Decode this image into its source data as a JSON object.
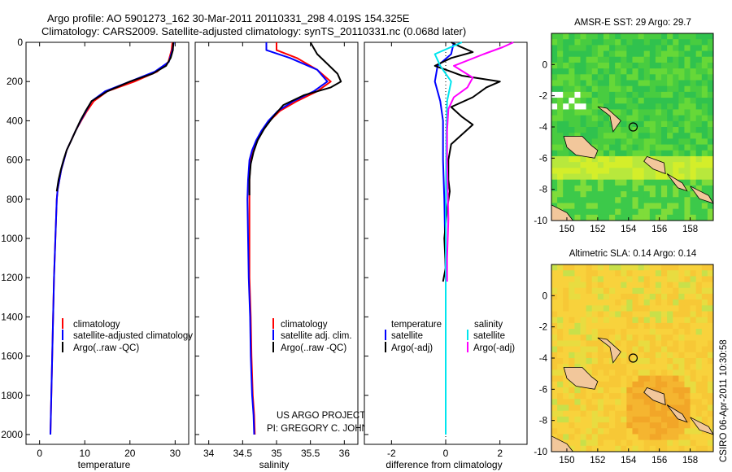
{
  "header": {
    "line1": "Argo profile: AO 5901273_162 30-Mar-2011 20110331_298 4.019S 154.325E",
    "line2": "Climatology: CARS2009. Satellite-adjusted climatology: synTS_20110331.nc (0.068d later)"
  },
  "credits": {
    "project": "US ARGO PROJECT",
    "pi": "PI: GREGORY C. JOHNSON",
    "stamp": "CSIRO 06-Apr-2011 10:30:58"
  },
  "colors": {
    "climatology": "#ff0000",
    "satellite": "#0000ff",
    "argo": "#000000",
    "sal_satellite": "#00e5ee",
    "sal_argo": "#ff00ff",
    "land": "#f2c79b"
  },
  "chart_data": [
    {
      "type": "line",
      "id": "temperature",
      "xlabel": "temperature",
      "ylabel": "",
      "xlim": [
        -3,
        33
      ],
      "ylim": [
        2050,
        0
      ],
      "xticks": [
        0,
        10,
        20,
        30
      ],
      "yticks": [
        0,
        200,
        400,
        600,
        800,
        1000,
        1200,
        1400,
        1600,
        1800,
        2000
      ],
      "legend": [
        "climatology",
        "satellite-adjusted climatology",
        "Argo(..raw -QC)"
      ],
      "series": [
        {
          "name": "climatology",
          "color": "#ff0000",
          "x": [
            29.4,
            29.2,
            28.5,
            26,
            21,
            15,
            12,
            10.5,
            9.2,
            8,
            7,
            6,
            5.4,
            4.8,
            4.4,
            4,
            3.8,
            3.5,
            3.2,
            3,
            2.8,
            2.6,
            2.4
          ],
          "y": [
            0,
            40,
            100,
            150,
            200,
            250,
            300,
            350,
            400,
            450,
            500,
            550,
            600,
            650,
            700,
            750,
            800,
            1000,
            1200,
            1400,
            1600,
            1800,
            2000
          ]
        },
        {
          "name": "satellite-adjusted climatology",
          "color": "#0000ff",
          "x": [
            29.7,
            29.4,
            28.6,
            25.5,
            20,
            14.5,
            11.5,
            10.3,
            9.1,
            8,
            7,
            6,
            5.4,
            4.8,
            4.4,
            4,
            3.8,
            3.5,
            3.2,
            3,
            2.8,
            2.6,
            2.4
          ],
          "y": [
            0,
            40,
            100,
            150,
            200,
            250,
            300,
            350,
            400,
            450,
            500,
            550,
            600,
            650,
            700,
            750,
            800,
            1000,
            1200,
            1400,
            1600,
            1800,
            2000
          ]
        },
        {
          "name": "Argo(..raw -QC)",
          "color": "#000000",
          "x": [
            29.6,
            29.5,
            29,
            28,
            25,
            20,
            15,
            11.5,
            10.2,
            9,
            8,
            7,
            6,
            5.3,
            4.7,
            4.2,
            3.8
          ],
          "y": [
            0,
            40,
            80,
            120,
            160,
            200,
            250,
            300,
            350,
            400,
            450,
            500,
            550,
            600,
            650,
            700,
            760
          ]
        }
      ]
    },
    {
      "type": "line",
      "id": "salinity",
      "xlabel": "salinity",
      "ylabel": "",
      "xlim": [
        33.8,
        36.2
      ],
      "ylim": [
        2050,
        0
      ],
      "xticks": [
        34,
        34.5,
        35,
        35.5,
        36
      ],
      "yticks": [],
      "legend": [
        "climatology",
        "satellite adj. clim.",
        "Argo(..raw -QC)"
      ],
      "series": [
        {
          "name": "climatology",
          "color": "#ff0000",
          "x": [
            35.0,
            35.0,
            35.3,
            35.6,
            35.8,
            35.6,
            35.3,
            35.05,
            34.9,
            34.8,
            34.72,
            34.66,
            34.62,
            34.6,
            34.6,
            34.6,
            34.6,
            34.62,
            34.63,
            34.65,
            34.67,
            34.68
          ],
          "y": [
            0,
            40,
            80,
            140,
            200,
            250,
            300,
            350,
            400,
            450,
            500,
            550,
            600,
            700,
            800,
            1000,
            1200,
            1400,
            1600,
            1800,
            1900,
            2000
          ]
        },
        {
          "name": "satellite adj. clim.",
          "color": "#0000ff",
          "x": [
            34.85,
            34.85,
            35.2,
            35.6,
            35.75,
            35.55,
            35.25,
            35.02,
            34.88,
            34.78,
            34.7,
            34.64,
            34.6,
            34.58,
            34.57,
            34.58,
            34.59,
            34.61,
            34.62,
            34.64,
            34.66,
            34.67
          ],
          "y": [
            0,
            40,
            80,
            140,
            200,
            250,
            300,
            350,
            400,
            450,
            500,
            550,
            600,
            700,
            800,
            1000,
            1200,
            1400,
            1600,
            1800,
            1900,
            2000
          ]
        },
        {
          "name": "Argo(..raw -QC)",
          "color": "#000000",
          "x": [
            35.5,
            35.55,
            35.6,
            35.75,
            35.9,
            35.95,
            35.8,
            35.4,
            35.1,
            34.95,
            34.82,
            34.72,
            34.66,
            34.62,
            34.6,
            34.6
          ],
          "y": [
            0,
            30,
            60,
            110,
            160,
            200,
            230,
            270,
            320,
            380,
            440,
            500,
            560,
            620,
            700,
            780
          ]
        }
      ]
    },
    {
      "type": "line",
      "id": "difference",
      "xlabel": "difference from climatology",
      "ylabel": "",
      "xlim": [
        -3,
        3
      ],
      "ylim": [
        2050,
        0
      ],
      "xticks": [
        -2,
        0,
        2
      ],
      "yticks": [],
      "legend_titles": [
        "temperature",
        "salinity"
      ],
      "legend": [
        "satellite",
        "Argo(-adj)",
        "satellite",
        "Argo(-adj)"
      ],
      "series": [
        {
          "name": "temperature satellite",
          "group": "temperature",
          "color": "#0000ff",
          "x": [
            0.3,
            0.2,
            -0.3,
            -0.4,
            -0.2,
            -0.1,
            -0.1,
            -0.05,
            0,
            0
          ],
          "y": [
            0,
            60,
            120,
            200,
            300,
            400,
            600,
            800,
            1200,
            2000
          ]
        },
        {
          "name": "temperature Argo(-adj)",
          "group": "temperature",
          "color": "#000000",
          "x": [
            0.2,
            0.5,
            1.0,
            0.2,
            -0.4,
            0.2,
            0.6,
            2.0,
            1.5,
            1.0,
            0.2,
            0.6,
            1.0,
            0.6,
            0.2,
            0.1,
            0.1,
            0.15,
            0.05,
            -0.05,
            0.0,
            -0.1
          ],
          "y": [
            0,
            20,
            50,
            80,
            120,
            150,
            170,
            200,
            230,
            280,
            330,
            380,
            420,
            470,
            520,
            600,
            700,
            760,
            850,
            1000,
            1150,
            1220
          ]
        },
        {
          "name": "salinity satellite",
          "group": "salinity",
          "color": "#00e5ee",
          "x": [
            0.6,
            -0.4,
            -0.2,
            0.2,
            0.05,
            0.02,
            0.0,
            0.0
          ],
          "y": [
            0,
            60,
            120,
            200,
            300,
            500,
            1000,
            2000
          ]
        },
        {
          "name": "salinity Argo(-adj)",
          "group": "salinity",
          "color": "#ff00ff",
          "x": [
            2.5,
            2.1,
            1.4,
            0.3,
            1.0,
            0.8,
            0.3,
            0.1,
            0.05,
            0.05,
            0.1,
            0.05,
            0.05
          ],
          "y": [
            0,
            25,
            60,
            120,
            180,
            230,
            280,
            340,
            450,
            600,
            900,
            1100,
            1220
          ]
        }
      ]
    },
    {
      "type": "heatmap",
      "id": "sst_map",
      "title": "AMSR-E SST: 29 Argo: 29.7",
      "xlim": [
        149,
        159.5
      ],
      "ylim": [
        -10,
        2
      ],
      "xticks": [
        150,
        152,
        154,
        156,
        158
      ],
      "yticks": [
        0,
        -2,
        -4,
        -6,
        -8,
        -10
      ],
      "marker": {
        "x": 154.3,
        "y": -4.0
      }
    },
    {
      "type": "heatmap",
      "id": "sla_map",
      "title": "Altimetric SLA: 0.14 Argo: 0.14",
      "xlim": [
        149,
        159.5
      ],
      "ylim": [
        -10,
        2
      ],
      "xticks": [
        150,
        152,
        154,
        156,
        158
      ],
      "yticks": [
        0,
        -2,
        -4,
        -6,
        -8,
        -10
      ],
      "marker": {
        "x": 154.3,
        "y": -4.0
      }
    }
  ]
}
